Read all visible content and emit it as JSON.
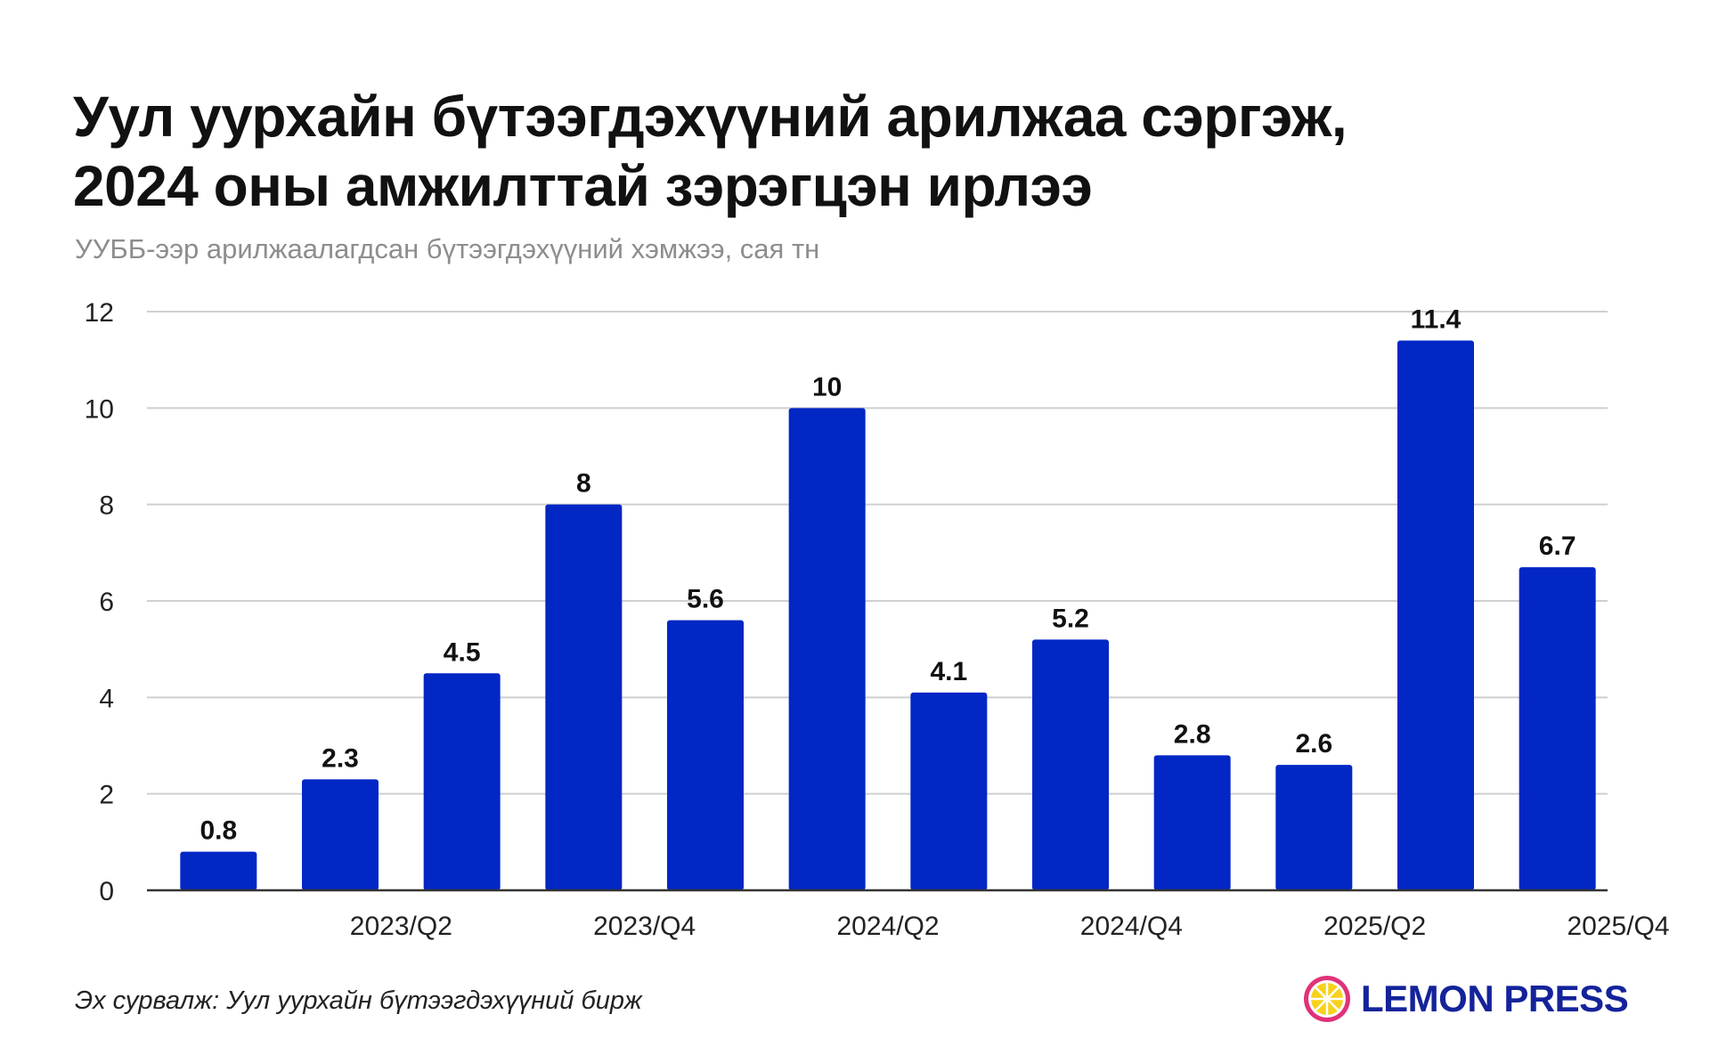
{
  "title": {
    "line1": "Уул уурхайн бүтээгдэхүүний арилжаа сэргэж,",
    "line2": "2024 оны амжилттай зэрэгцэн ирлээ"
  },
  "subtitle": "УУББ-ээр арилжаалагдсан бүтээгдэхүүний хэмжээ, сая тн",
  "source": "Эх сурвалж: Уул уурхайн бүтээгдэхүүний бирж",
  "logo": {
    "text": "LEMON PRESS",
    "icon": "lemon-slice-icon"
  },
  "colors": {
    "bar": "#0327c5",
    "grid": "#cfcfcf",
    "axis": "#333333",
    "logo": "#14239a",
    "logo_ring": "#e0327a",
    "logo_fill": "#f7d21c"
  },
  "chart_data": {
    "type": "bar",
    "categories": [
      "",
      "2023/Q2",
      "",
      "2023/Q4",
      "",
      "2024/Q2",
      "",
      "2024/Q4",
      "",
      "2025/Q2",
      "",
      "2025/Q4"
    ],
    "values": [
      0.8,
      2.3,
      4.5,
      8,
      5.6,
      10,
      4.1,
      5.2,
      2.8,
      2.6,
      11.4,
      6.7
    ],
    "data_labels": [
      "0.8",
      "2.3",
      "4.5",
      "8",
      "5.6",
      "10",
      "4.1",
      "5.2",
      "2.8",
      "2.6",
      "11.4",
      "6.7"
    ],
    "yticks": [
      "0",
      "2",
      "4",
      "6",
      "8",
      "10",
      "12"
    ],
    "ylim": [
      0,
      12
    ],
    "grid": true,
    "legend": "none"
  }
}
